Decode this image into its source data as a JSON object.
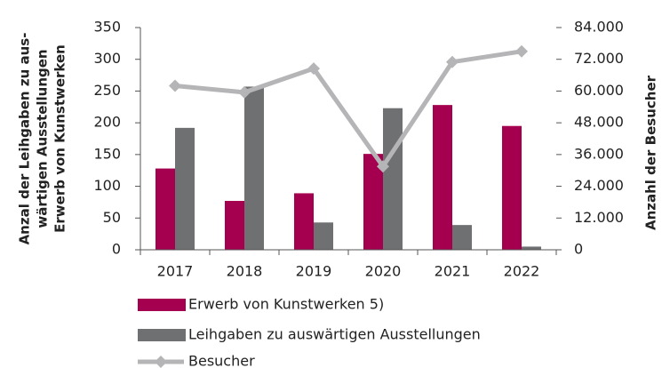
{
  "chart_data": {
    "type": "bar",
    "y_label": [
      "Anzal der Leihgaben zu aus-",
      "wärtigen Ausstellungen",
      "Erwerb von Kunstwerken"
    ],
    "y2_label": "Anzahl der Besucher",
    "categories": [
      "2017",
      "2018",
      "2019",
      "2020",
      "2021",
      "2022"
    ],
    "series": [
      {
        "name": "Erwerb von Kunstwerken 5)",
        "color": "#a5004f",
        "values": [
          128,
          77,
          89,
          151,
          228,
          195
        ]
      },
      {
        "name": "Leihgaben zu auswärtigen Ausstellungen",
        "color": "#6f7072",
        "values": [
          192,
          257,
          43,
          223,
          39,
          5
        ]
      },
      {
        "name": "Besucher",
        "color": "#b5b5b7",
        "type": "line",
        "axis": "y2",
        "values": [
          62000,
          59500,
          68500,
          31500,
          71000,
          75000
        ]
      }
    ],
    "ylim": [
      0,
      350
    ],
    "yticks": [
      0,
      50,
      100,
      150,
      200,
      250,
      300,
      350
    ],
    "y2lim": [
      0,
      84000
    ],
    "y2ticks": [
      {
        "value": 0,
        "label": "0"
      },
      {
        "value": 12000,
        "label": "12.000"
      },
      {
        "value": 24000,
        "label": "24.000"
      },
      {
        "value": 36000,
        "label": "36.000"
      },
      {
        "value": 48000,
        "label": "48.000"
      },
      {
        "value": 60000,
        "label": "60.000"
      },
      {
        "value": 72000,
        "label": "72.000"
      },
      {
        "value": 84000,
        "label": "84.000"
      }
    ]
  }
}
